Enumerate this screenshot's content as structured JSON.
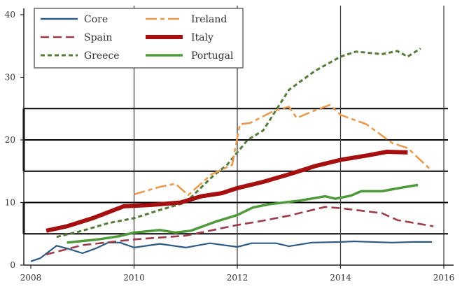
{
  "chart_data": {
    "type": "line",
    "title": "",
    "xlabel": "",
    "ylabel": "",
    "xlim": [
      2008,
      2016
    ],
    "ylim": [
      0,
      40
    ],
    "x_ticks": [
      2008,
      2010,
      2012,
      2014,
      2016
    ],
    "x_tick_labels": [
      "2008",
      "2010",
      "2012",
      "2014",
      "2016"
    ],
    "y_ticks": [
      0,
      10,
      20,
      30,
      40
    ],
    "y_tick_labels": [
      "0",
      "10",
      "20",
      "30",
      "40"
    ],
    "reference_lines_y": [
      5,
      10,
      15,
      20,
      25
    ],
    "reference_lines_x": [
      2010,
      2012,
      2014,
      2016
    ],
    "legend_position": "top-left",
    "series": [
      {
        "name": "Core",
        "color": "#2e5b86",
        "style": "solid-thin",
        "x": [
          2008.0,
          2008.18,
          2008.5,
          2008.73,
          2009.0,
          2009.27,
          2009.5,
          2009.73,
          2010.0,
          2010.5,
          2011.0,
          2011.47,
          2012.0,
          2012.28,
          2012.75,
          2013.0,
          2013.44,
          2014.0,
          2014.25,
          2015.0,
          2015.4,
          2015.77
        ],
        "y": [
          0.6,
          1.1,
          3.1,
          2.6,
          1.9,
          2.7,
          3.6,
          3.6,
          2.8,
          3.4,
          2.8,
          3.5,
          2.9,
          3.5,
          3.5,
          3.0,
          3.6,
          3.7,
          3.8,
          3.6,
          3.7,
          3.7
        ]
      },
      {
        "name": "Spain",
        "color": "#9b3b4a",
        "style": "long-dash",
        "x": [
          2008.3,
          2009.0,
          2010.0,
          2011.0,
          2012.0,
          2012.5,
          2013.0,
          2013.7,
          2014.0,
          2014.8,
          2015.1,
          2015.8
        ],
        "y": [
          1.7,
          3.2,
          4.1,
          4.7,
          6.4,
          7.1,
          7.9,
          9.3,
          9.1,
          8.3,
          7.2,
          6.2
        ]
      },
      {
        "name": "Greece",
        "color": "#557a3a",
        "style": "short-dash",
        "x": [
          2008.5,
          2009.0,
          2009.5,
          2010.0,
          2010.5,
          2011.0,
          2011.5,
          2011.8,
          2012.2,
          2012.5,
          2013.0,
          2013.5,
          2014.0,
          2014.3,
          2014.8,
          2015.1,
          2015.3,
          2015.55
        ],
        "y": [
          4.5,
          5.5,
          6.7,
          7.5,
          8.8,
          10.0,
          14.0,
          16.0,
          20.0,
          21.5,
          28.0,
          31.0,
          33.3,
          34.1,
          33.7,
          34.2,
          33.3,
          34.6
        ]
      },
      {
        "name": "Ireland",
        "color": "#e89a4e",
        "style": "dash-dot",
        "x": [
          2010.0,
          2010.5,
          2010.8,
          2011.05,
          2011.5,
          2011.9,
          2012.05,
          2012.25,
          2012.7,
          2013.0,
          2013.15,
          2013.5,
          2013.8,
          2014.0,
          2014.5,
          2015.0,
          2015.3,
          2015.75
        ],
        "y": [
          11.3,
          12.5,
          13.0,
          11.2,
          14.5,
          16.0,
          22.5,
          22.7,
          24.6,
          25.3,
          23.5,
          24.7,
          25.6,
          24.0,
          22.5,
          19.5,
          18.7,
          15.2
        ]
      },
      {
        "name": "Italy",
        "color": "#a50f0f",
        "style": "solid-thick",
        "x": [
          2008.3,
          2008.7,
          2009.2,
          2009.8,
          2010.3,
          2010.9,
          2011.3,
          2011.7,
          2012.0,
          2012.5,
          2013.0,
          2013.5,
          2014.0,
          2014.5,
          2014.9,
          2015.3
        ],
        "y": [
          5.5,
          6.2,
          7.5,
          9.4,
          9.6,
          10.0,
          11.0,
          11.5,
          12.3,
          13.3,
          14.5,
          15.8,
          16.8,
          17.5,
          18.1,
          18.0
        ]
      },
      {
        "name": "Portugal",
        "color": "#4e9a3a",
        "style": "solid-medium",
        "x": [
          2008.7,
          2009.3,
          2009.7,
          2010.0,
          2010.5,
          2010.8,
          2011.1,
          2011.6,
          2012.0,
          2012.3,
          2012.6,
          2012.9,
          2013.2,
          2013.5,
          2013.7,
          2013.9,
          2014.2,
          2014.4,
          2014.8,
          2015.2,
          2015.5
        ],
        "y": [
          3.6,
          4.1,
          4.6,
          5.2,
          5.6,
          5.2,
          5.5,
          7.0,
          8.0,
          9.2,
          9.7,
          10.0,
          10.3,
          10.7,
          11.0,
          10.6,
          11.1,
          11.8,
          11.8,
          12.4,
          12.8
        ]
      }
    ],
    "legend": [
      {
        "label": "Core",
        "series": 0
      },
      {
        "label": "Spain",
        "series": 1
      },
      {
        "label": "Greece",
        "series": 2
      },
      {
        "label": "Ireland",
        "series": 3
      },
      {
        "label": "Italy",
        "series": 4
      },
      {
        "label": "Portugal",
        "series": 5
      }
    ]
  }
}
